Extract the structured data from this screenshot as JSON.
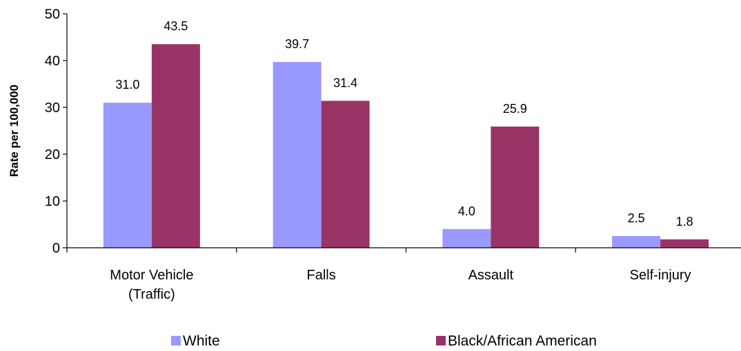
{
  "chart_data": {
    "type": "bar",
    "ylabel": "Rate per 100,000",
    "ylim": [
      0,
      50
    ],
    "yticks": [
      0,
      10,
      20,
      30,
      40,
      50
    ],
    "categories": [
      [
        "Motor Vehicle",
        "(Traffic)"
      ],
      [
        "Falls"
      ],
      [
        "Assault"
      ],
      [
        "Self-injury"
      ]
    ],
    "series": [
      {
        "name": "White",
        "color": "#9999FF",
        "values": [
          31.0,
          39.7,
          4.0,
          2.5
        ],
        "labels": [
          "31.0",
          "39.7",
          "4.0",
          "2.5"
        ]
      },
      {
        "name": "Black/African American",
        "color": "#993366",
        "values": [
          43.5,
          31.4,
          25.9,
          1.8
        ],
        "labels": [
          "43.5",
          "31.4",
          "25.9",
          "1.8"
        ]
      }
    ],
    "grid": false,
    "legend_position": "bottom"
  }
}
